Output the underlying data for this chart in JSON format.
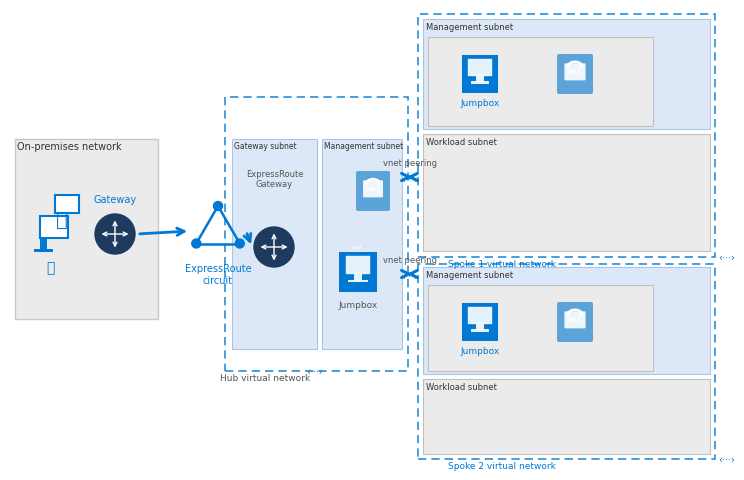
{
  "bg_color": "#ffffff",
  "blue": "#0078d4",
  "blue_mid": "#2488ce",
  "blue_light": "#5ba3d9",
  "dark_navy": "#1e3a5f",
  "gray_box": "#ebebeb",
  "gray_light": "#f0f2f5",
  "blue_box": "#dce8f7",
  "border_gray": "#c0c0c0",
  "border_blue": "#aac5e8",
  "text_dark": "#333333",
  "text_blue": "#0078d4",
  "text_gray": "#555555",
  "dashed_blue": "#2a8dd4",
  "onprem_label": "On-premises network",
  "hub_label": "Hub virtual network",
  "gateway_subnet_label": "Gateway subnet",
  "management_subnet_hub_label": "Management subnet",
  "expressroute_label": "ExpressRoute\ncircuit",
  "expressroute_gateway_label": "ExpressRoute\nGateway",
  "spoke1_label": "Spoke 1 virtual network",
  "spoke2_label": "Spoke 2 virtual network",
  "spoke1_mgmt_label": "Management subnet",
  "spoke1_workload_label": "Workload subnet",
  "spoke2_mgmt_label": "Management subnet",
  "spoke2_workload_label": "Workload subnet",
  "vnet_peering_label": "vnet peering",
  "jumpbox_label": "Jumpbox",
  "gateway_label": "Gateway"
}
